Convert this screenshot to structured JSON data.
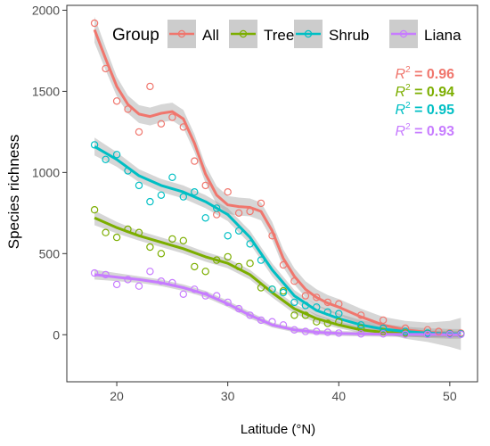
{
  "chart_data": {
    "type": "scatter",
    "xlabel": "Latitude (°N)",
    "ylabel": "Species richness",
    "xlim": [
      15.5,
      52.5
    ],
    "ylim": [
      -290,
      2030
    ],
    "x_ticks": [
      20,
      30,
      40,
      50
    ],
    "y_ticks": [
      0,
      500,
      1000,
      1500,
      2000
    ],
    "grid": false,
    "legend": {
      "title": "Group",
      "position": "top",
      "entries": [
        "All",
        "Tree",
        "Shrub",
        "Liana"
      ]
    },
    "annotations": [
      {
        "series": "All",
        "label": "R² = 0.96",
        "r2": "0.96"
      },
      {
        "series": "Tree",
        "label": "R² = 0.94",
        "r2": "0.94"
      },
      {
        "series": "Shrub",
        "label": "R² = 0.95",
        "r2": "0.95"
      },
      {
        "series": "Liana",
        "label": "R² = 0.93",
        "r2": "0.93"
      }
    ],
    "series": [
      {
        "name": "All",
        "color": "#f0766d",
        "points": [
          [
            18,
            1920
          ],
          [
            19,
            1640
          ],
          [
            20,
            1440
          ],
          [
            21,
            1390
          ],
          [
            22,
            1250
          ],
          [
            23,
            1530
          ],
          [
            24,
            1300
          ],
          [
            25,
            1340
          ],
          [
            26,
            1280
          ],
          [
            27,
            1070
          ],
          [
            28,
            920
          ],
          [
            29,
            740
          ],
          [
            30,
            880
          ],
          [
            31,
            750
          ],
          [
            32,
            760
          ],
          [
            33,
            810
          ],
          [
            34,
            610
          ],
          [
            35,
            430
          ],
          [
            36,
            330
          ],
          [
            37,
            240
          ],
          [
            38,
            230
          ],
          [
            39,
            200
          ],
          [
            40,
            190
          ],
          [
            42,
            120
          ],
          [
            44,
            90
          ],
          [
            46,
            40
          ],
          [
            48,
            30
          ],
          [
            49,
            20
          ],
          [
            50,
            10
          ],
          [
            51,
            10
          ]
        ],
        "curve": [
          [
            18,
            1880
          ],
          [
            19,
            1700
          ],
          [
            20,
            1530
          ],
          [
            21,
            1420
          ],
          [
            22,
            1360
          ],
          [
            23,
            1345
          ],
          [
            24,
            1365
          ],
          [
            25,
            1375
          ],
          [
            26,
            1330
          ],
          [
            27,
            1180
          ],
          [
            28,
            990
          ],
          [
            29,
            860
          ],
          [
            30,
            800
          ],
          [
            31,
            790
          ],
          [
            32,
            785
          ],
          [
            33,
            760
          ],
          [
            34,
            640
          ],
          [
            35,
            470
          ],
          [
            36,
            360
          ],
          [
            37,
            280
          ],
          [
            38,
            230
          ],
          [
            39,
            195
          ],
          [
            40,
            170
          ],
          [
            42,
            110
          ],
          [
            44,
            60
          ],
          [
            46,
            30
          ],
          [
            48,
            15
          ],
          [
            50,
            5
          ],
          [
            51,
            5
          ]
        ],
        "band": [
          80,
          70,
          60,
          55,
          55,
          55,
          55,
          55,
          55,
          55,
          55,
          55,
          55,
          55,
          55,
          55,
          55,
          55,
          50,
          50,
          50,
          50,
          50,
          50,
          50,
          55,
          60,
          80,
          100
        ]
      },
      {
        "name": "Tree",
        "color": "#7cae00",
        "points": [
          [
            18,
            770
          ],
          [
            19,
            630
          ],
          [
            20,
            600
          ],
          [
            21,
            650
          ],
          [
            22,
            630
          ],
          [
            23,
            540
          ],
          [
            24,
            500
          ],
          [
            25,
            590
          ],
          [
            26,
            580
          ],
          [
            27,
            420
          ],
          [
            28,
            390
          ],
          [
            29,
            460
          ],
          [
            30,
            480
          ],
          [
            31,
            420
          ],
          [
            32,
            440
          ],
          [
            33,
            290
          ],
          [
            34,
            280
          ],
          [
            35,
            270
          ],
          [
            36,
            120
          ],
          [
            37,
            120
          ],
          [
            38,
            80
          ],
          [
            39,
            70
          ],
          [
            40,
            80
          ],
          [
            42,
            40
          ],
          [
            44,
            20
          ],
          [
            46,
            10
          ],
          [
            48,
            5
          ],
          [
            50,
            5
          ],
          [
            51,
            5
          ]
        ],
        "curve": [
          [
            18,
            720
          ],
          [
            20,
            660
          ],
          [
            22,
            610
          ],
          [
            24,
            570
          ],
          [
            26,
            530
          ],
          [
            28,
            480
          ],
          [
            30,
            440
          ],
          [
            32,
            370
          ],
          [
            34,
            260
          ],
          [
            36,
            160
          ],
          [
            38,
            100
          ],
          [
            40,
            60
          ],
          [
            42,
            30
          ],
          [
            44,
            15
          ],
          [
            46,
            8
          ],
          [
            48,
            5
          ],
          [
            50,
            3
          ],
          [
            51,
            3
          ]
        ],
        "band": [
          45,
          35,
          30,
          30,
          30,
          30,
          30,
          30,
          30,
          30,
          25,
          20,
          20,
          20,
          20,
          20,
          20,
          20
        ]
      },
      {
        "name": "Shrub",
        "color": "#00bfc4",
        "points": [
          [
            18,
            1170
          ],
          [
            19,
            1080
          ],
          [
            20,
            1110
          ],
          [
            21,
            1010
          ],
          [
            22,
            920
          ],
          [
            23,
            820
          ],
          [
            24,
            860
          ],
          [
            25,
            970
          ],
          [
            26,
            850
          ],
          [
            27,
            880
          ],
          [
            28,
            720
          ],
          [
            29,
            780
          ],
          [
            30,
            610
          ],
          [
            31,
            640
          ],
          [
            32,
            560
          ],
          [
            33,
            460
          ],
          [
            34,
            280
          ],
          [
            35,
            260
          ],
          [
            36,
            200
          ],
          [
            37,
            180
          ],
          [
            38,
            170
          ],
          [
            39,
            140
          ],
          [
            40,
            130
          ],
          [
            42,
            60
          ],
          [
            44,
            40
          ],
          [
            46,
            20
          ],
          [
            48,
            10
          ],
          [
            50,
            5
          ],
          [
            51,
            5
          ]
        ],
        "curve": [
          [
            18,
            1160
          ],
          [
            20,
            1080
          ],
          [
            22,
            980
          ],
          [
            24,
            920
          ],
          [
            26,
            880
          ],
          [
            28,
            820
          ],
          [
            30,
            740
          ],
          [
            32,
            600
          ],
          [
            34,
            400
          ],
          [
            36,
            240
          ],
          [
            38,
            150
          ],
          [
            40,
            100
          ],
          [
            42,
            60
          ],
          [
            44,
            35
          ],
          [
            46,
            20
          ],
          [
            48,
            10
          ],
          [
            50,
            5
          ],
          [
            51,
            5
          ]
        ],
        "band": [
          55,
          45,
          40,
          40,
          40,
          40,
          40,
          40,
          40,
          35,
          35,
          30,
          30,
          30,
          30,
          30,
          30,
          30
        ]
      },
      {
        "name": "Liana",
        "color": "#c77cff",
        "points": [
          [
            18,
            380
          ],
          [
            19,
            370
          ],
          [
            20,
            310
          ],
          [
            21,
            340
          ],
          [
            22,
            300
          ],
          [
            23,
            390
          ],
          [
            24,
            330
          ],
          [
            25,
            320
          ],
          [
            26,
            250
          ],
          [
            27,
            280
          ],
          [
            28,
            240
          ],
          [
            29,
            240
          ],
          [
            30,
            200
          ],
          [
            31,
            160
          ],
          [
            32,
            120
          ],
          [
            33,
            90
          ],
          [
            34,
            80
          ],
          [
            35,
            60
          ],
          [
            36,
            30
          ],
          [
            37,
            20
          ],
          [
            38,
            20
          ],
          [
            39,
            15
          ],
          [
            40,
            10
          ],
          [
            42,
            5
          ],
          [
            44,
            5
          ],
          [
            46,
            3
          ],
          [
            48,
            2
          ],
          [
            50,
            2
          ],
          [
            51,
            2
          ]
        ],
        "curve": [
          [
            18,
            370
          ],
          [
            20,
            355
          ],
          [
            22,
            340
          ],
          [
            24,
            320
          ],
          [
            26,
            290
          ],
          [
            28,
            250
          ],
          [
            30,
            190
          ],
          [
            32,
            120
          ],
          [
            34,
            60
          ],
          [
            36,
            30
          ],
          [
            38,
            15
          ],
          [
            40,
            8
          ],
          [
            42,
            5
          ],
          [
            44,
            3
          ],
          [
            46,
            2
          ],
          [
            48,
            2
          ],
          [
            50,
            1
          ],
          [
            51,
            1
          ]
        ],
        "band": [
          30,
          25,
          20,
          20,
          20,
          20,
          20,
          20,
          15,
          15,
          15,
          15,
          15,
          15,
          15,
          15,
          15,
          15
        ]
      }
    ]
  }
}
